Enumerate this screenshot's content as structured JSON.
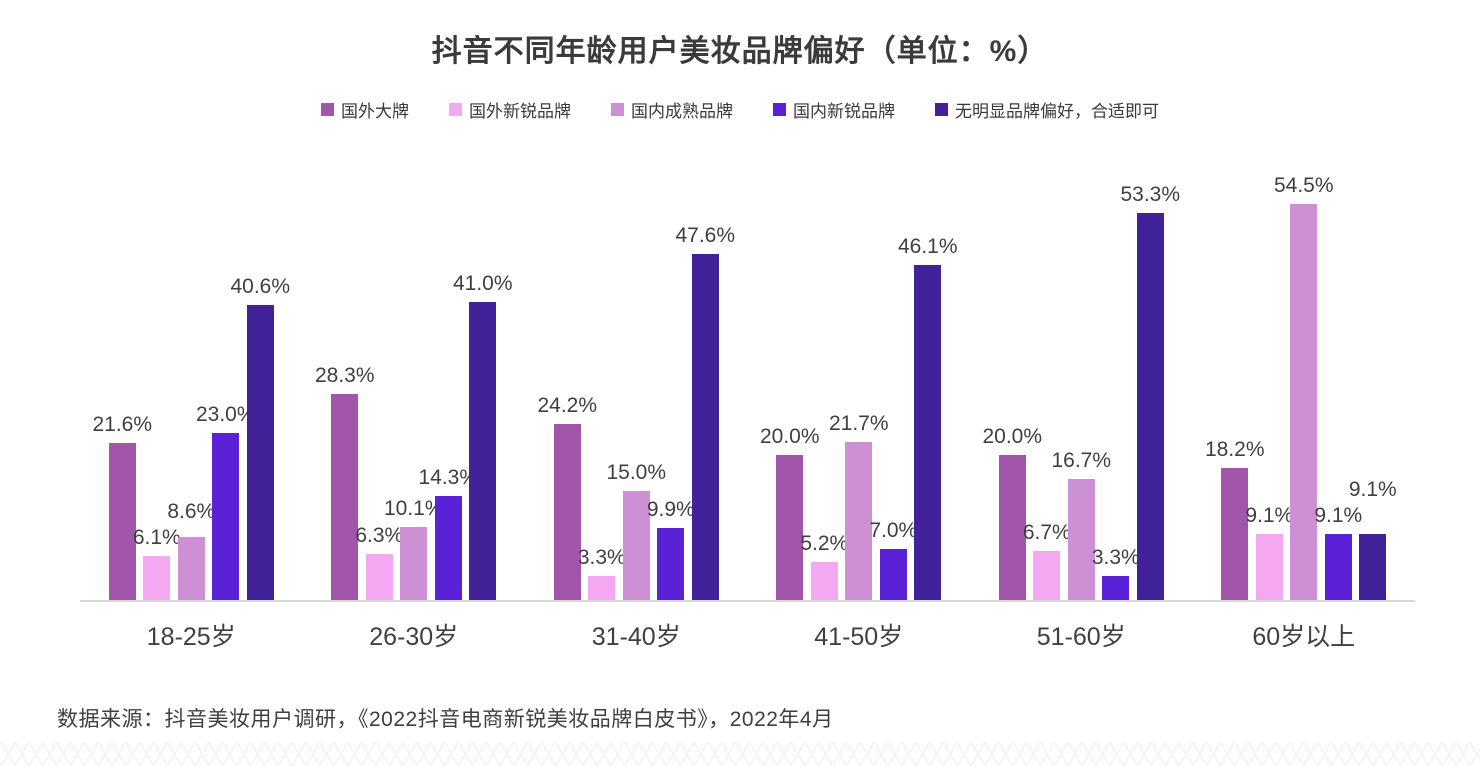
{
  "title": "抖音不同年龄用户美妆品牌偏好（单位：%）",
  "source": "数据来源：抖音美妆用户调研，《2022抖音电商新锐美妆品牌白皮书》，2022年4月",
  "chart_data": {
    "type": "bar",
    "title": "抖音不同年龄用户美妆品牌偏好（单位：%）",
    "unit": "%",
    "value_suffix": "%",
    "categories": [
      "18-25岁",
      "26-30岁",
      "31-40岁",
      "41-50岁",
      "51-60岁",
      "60岁以上"
    ],
    "series": [
      {
        "name": "国外大牌",
        "color": "#A156AC",
        "values": [
          21.6,
          28.3,
          24.2,
          20.0,
          20.0,
          18.2
        ]
      },
      {
        "name": "国外新锐品牌",
        "color": "#F3A8F1",
        "values": [
          6.1,
          6.3,
          3.3,
          5.2,
          6.7,
          9.1
        ]
      },
      {
        "name": "国内成熟品牌",
        "color": "#CE90D5",
        "values": [
          8.6,
          10.1,
          15.0,
          21.7,
          16.7,
          54.5
        ]
      },
      {
        "name": "国内新锐品牌",
        "color": "#5B21D6",
        "values": [
          23.0,
          14.3,
          9.9,
          7.0,
          3.3,
          9.1
        ]
      },
      {
        "name": "无明显品牌偏好，合适即可",
        "color": "#412299",
        "values": [
          40.6,
          41.0,
          47.6,
          46.1,
          53.3,
          9.1
        ]
      }
    ],
    "ylim": [
      0,
      60
    ],
    "grid": false,
    "y_axis_visible": false,
    "legend_position": "top",
    "axis_line_color": "#D8D8D8",
    "text_color": "#3F3F3F"
  }
}
